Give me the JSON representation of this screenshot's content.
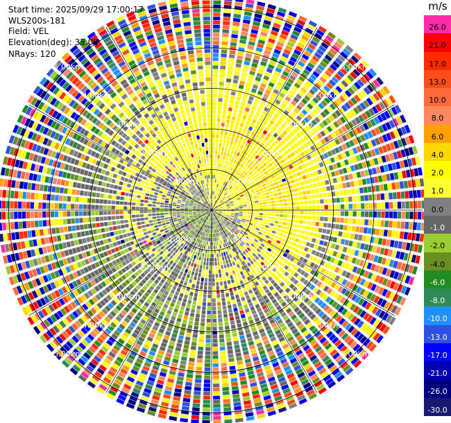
{
  "header": {
    "start_time": "Start time: 2025/09/29 17:00:17",
    "station": "WLS200s-181",
    "field": "Field: VEL",
    "elevation": "Elevation(deg): 35.00",
    "nrays": "NRays: 120"
  },
  "colorbar": {
    "unit": "m/s",
    "levels": [
      {
        "label": "26.0",
        "color": "#ff2ca8",
        "text_color": "#000000"
      },
      {
        "label": "21.0",
        "color": "#ff0000",
        "text_color": "#000000"
      },
      {
        "label": "17.0",
        "color": "#ff2a00",
        "text_color": "#000000"
      },
      {
        "label": "13.0",
        "color": "#ff4d1a",
        "text_color": "#000000"
      },
      {
        "label": "10.0",
        "color": "#ff6a3a",
        "text_color": "#000000"
      },
      {
        "label": "8.0",
        "color": "#ff8860",
        "text_color": "#000000"
      },
      {
        "label": "6.0",
        "color": "#ffa000",
        "text_color": "#000000"
      },
      {
        "label": "4.0",
        "color": "#ffd700",
        "text_color": "#000000"
      },
      {
        "label": "2.0",
        "color": "#ffff00",
        "text_color": "#000000"
      },
      {
        "label": "1.0",
        "color": "#ffff33",
        "text_color": "#000000"
      },
      {
        "label": "0.0",
        "color": "#808080",
        "text_color": "#000000"
      },
      {
        "label": "-1.0",
        "color": "#666666",
        "text_color": "#ffffff"
      },
      {
        "label": "-2.0",
        "color": "#9acd32",
        "text_color": "#000000"
      },
      {
        "label": "-4.0",
        "color": "#6b8e23",
        "text_color": "#000000"
      },
      {
        "label": "-6.0",
        "color": "#228b22",
        "text_color": "#ffffff"
      },
      {
        "label": "-8.0",
        "color": "#2e8b57",
        "text_color": "#ffffff"
      },
      {
        "label": "-10.0",
        "color": "#1e90ff",
        "text_color": "#ffffff"
      },
      {
        "label": "-13.0",
        "color": "#3050e0",
        "text_color": "#ffffff"
      },
      {
        "label": "-17.0",
        "color": "#0000ff",
        "text_color": "#ffffff"
      },
      {
        "label": "-21.0",
        "color": "#0000b0",
        "text_color": "#ffffff"
      },
      {
        "label": "-26.0",
        "color": "#000080",
        "text_color": "#ffffff"
      },
      {
        "label": "-30.0",
        "color": "#191970",
        "text_color": "#ffffff"
      }
    ]
  },
  "chart_data": {
    "type": "heatmap",
    "projection": "polar PPI",
    "field": "VEL",
    "unit": "m/s",
    "elevation_deg": 35.0,
    "nrays": 120,
    "range_rings_km": [
      1,
      2,
      3,
      4,
      5
    ],
    "range_ring_labels": [
      "1.00km",
      "2.00km",
      "3.00km",
      "4.00km",
      "5.00km"
    ],
    "max_range_km": 5.2,
    "spoke_azimuths_deg": [
      0,
      30,
      60,
      90,
      120,
      150,
      180,
      210,
      240,
      270,
      300,
      330
    ],
    "label_azimuths_deg": [
      45,
      135,
      225,
      315
    ],
    "radial_profile": [
      {
        "range_km": 0.5,
        "dominant_mps": 0.0,
        "spread_mps": 3
      },
      {
        "range_km": 1.0,
        "dominant_mps": 1.5,
        "spread_mps": 4
      },
      {
        "range_km": 2.0,
        "dominant_mps": 2.0,
        "spread_mps": 3
      },
      {
        "range_km": 3.0,
        "dominant_mps": 0.0,
        "spread_mps": 3
      },
      {
        "range_km": 4.0,
        "dominant_mps": 0.0,
        "spread_mps": 30
      },
      {
        "range_km": 5.0,
        "dominant_mps": 0.0,
        "spread_mps": 56
      }
    ]
  }
}
